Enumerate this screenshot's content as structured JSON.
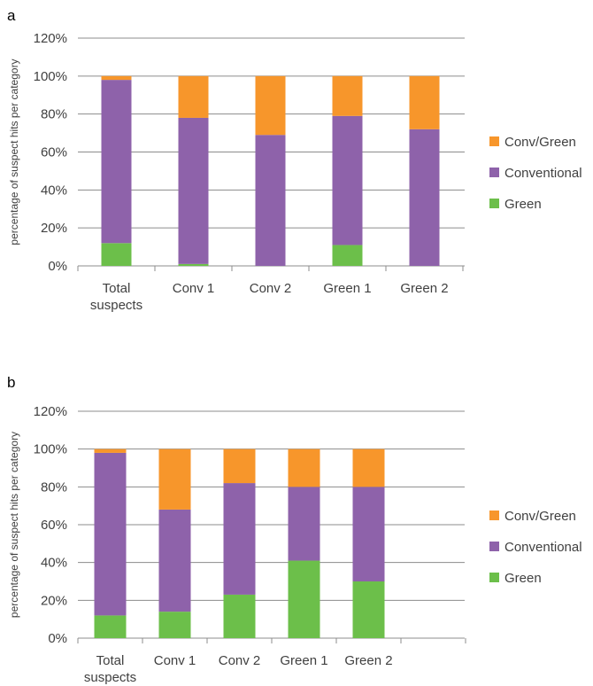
{
  "chart_data": [
    {
      "panel_label": "a",
      "type": "bar",
      "stacked": true,
      "categories": [
        "Total suspects",
        "Conv 1",
        "Conv 2",
        "Green 1",
        "Green 2"
      ],
      "series": [
        {
          "name": "Green",
          "color": "#6cbf4a",
          "values": [
            12,
            1,
            0,
            11,
            0
          ]
        },
        {
          "name": "Conventional",
          "color": "#8e62aa",
          "values": [
            86,
            77,
            69,
            68,
            72
          ]
        },
        {
          "name": "Conv/Green",
          "color": "#f7962b",
          "values": [
            2,
            22,
            31,
            21,
            28
          ]
        }
      ],
      "ylabel": "percentage of suspect hits per category",
      "ylim": [
        0,
        120
      ],
      "yticks": [
        "0%",
        "20%",
        "40%",
        "60%",
        "80%",
        "100%",
        "120%"
      ],
      "grid": true,
      "legend_position": "right"
    },
    {
      "panel_label": "b",
      "type": "bar",
      "stacked": true,
      "categories": [
        "Total suspects",
        "Conv 1",
        "Conv 2",
        "Green 1",
        "Green 2"
      ],
      "series": [
        {
          "name": "Green",
          "color": "#6cbf4a",
          "values": [
            12,
            14,
            23,
            41,
            30
          ]
        },
        {
          "name": "Conventional",
          "color": "#8e62aa",
          "values": [
            86,
            54,
            59,
            39,
            50
          ]
        },
        {
          "name": "Conv/Green",
          "color": "#f7962b",
          "values": [
            2,
            32,
            18,
            20,
            20
          ]
        }
      ],
      "ylabel": "percentage of suspect hits per category",
      "ylim": [
        0,
        120
      ],
      "yticks": [
        "0%",
        "20%",
        "40%",
        "60%",
        "80%",
        "100%",
        "120%"
      ],
      "grid": true,
      "legend_position": "right"
    }
  ]
}
